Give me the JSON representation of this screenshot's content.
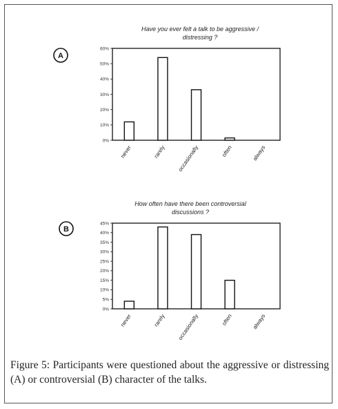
{
  "caption": {
    "label": "Figure 5:",
    "text": "Participants were questioned about the aggressive or distressing (A) or controversial (B) character of the talks."
  },
  "chart_data": [
    {
      "type": "bar",
      "panel": "A",
      "title_lines": [
        "Have you ever felt a talk to be aggressive /",
        "distressing ?"
      ],
      "categories": [
        "never",
        "rarely",
        "occasionally",
        "often",
        "always"
      ],
      "values": [
        12,
        54,
        33,
        1.5,
        0
      ],
      "ylim": [
        0,
        60
      ],
      "yticks": [
        0,
        10,
        20,
        30,
        40,
        50,
        60
      ],
      "ytick_labels": [
        "0%",
        "10%",
        "20%",
        "30%",
        "40%",
        "50%",
        "60%"
      ],
      "xlabel": "",
      "ylabel": ""
    },
    {
      "type": "bar",
      "panel": "B",
      "title_lines": [
        "How often have there been controversial",
        "discussions ?"
      ],
      "categories": [
        "never",
        "rarely",
        "occasionally",
        "often",
        "always"
      ],
      "values": [
        4,
        43,
        39,
        15,
        0
      ],
      "ylim": [
        0,
        45
      ],
      "yticks": [
        0,
        5,
        10,
        15,
        20,
        25,
        30,
        35,
        40,
        45
      ],
      "ytick_labels": [
        "0%",
        "5%",
        "10%",
        "15%",
        "20%",
        "25%",
        "30%",
        "35%",
        "40%",
        "45%"
      ],
      "xlabel": "",
      "ylabel": ""
    }
  ]
}
